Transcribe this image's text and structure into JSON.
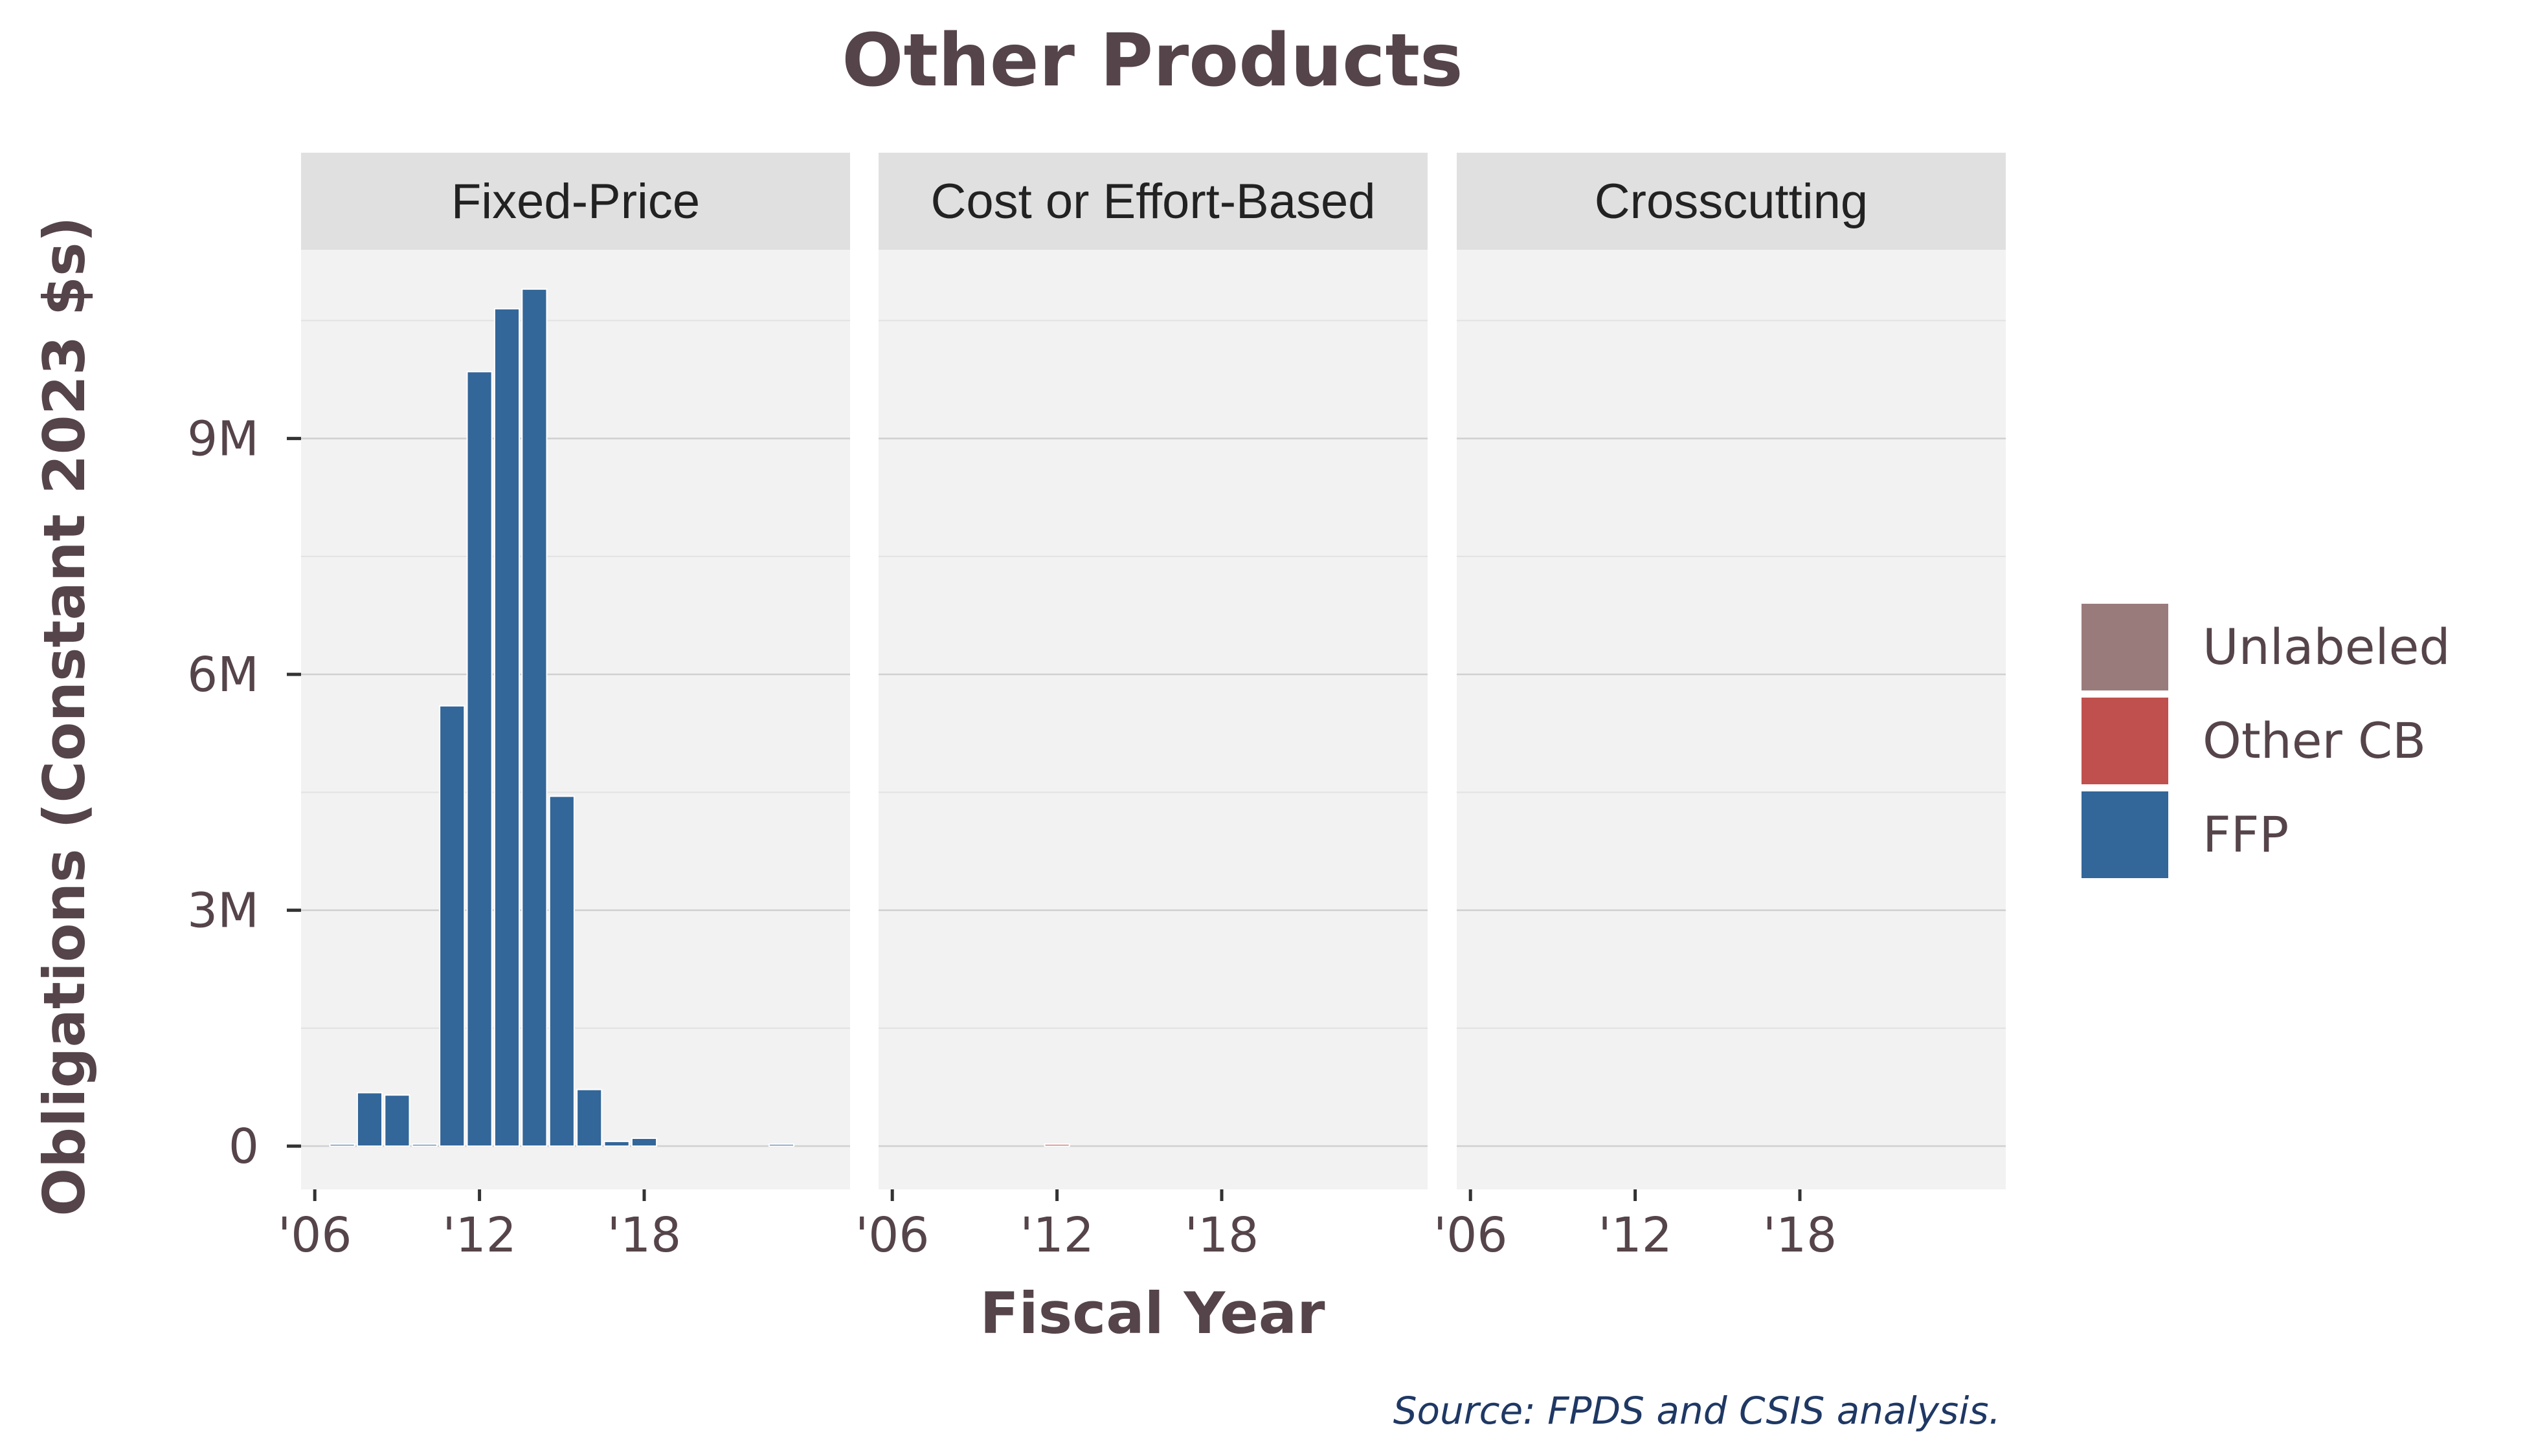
{
  "chart_data": {
    "type": "bar",
    "title": "Other Products",
    "xlabel": "Fiscal Year",
    "ylabel": "Obligations (Constant 2023 $s)",
    "caption": "Source: FPDS and CSIS analysis.",
    "x_ticks": [
      "'06",
      "'12",
      "'18"
    ],
    "y_ticks": [
      "0",
      "3M",
      "6M",
      "9M"
    ],
    "ylim": [
      -550000,
      11400000
    ],
    "xlim": [
      2005.5,
      2025.5
    ],
    "grid": true,
    "stacked": true,
    "legend_position": "right",
    "legend": [
      {
        "name": "Unlabeled",
        "color": "#9A7B7B"
      },
      {
        "name": "Other CB",
        "color": "#C0504D"
      },
      {
        "name": "FFP",
        "color": "#336699"
      }
    ],
    "panels": [
      {
        "label": "Fixed-Price",
        "series": [
          {
            "name": "FFP",
            "color": "#336699",
            "x": [
              2007,
              2008,
              2009,
              2010,
              2011,
              2012,
              2013,
              2014,
              2015,
              2016,
              2017,
              2018,
              2023
            ],
            "values": [
              20000,
              680000,
              650000,
              10000,
              5600000,
              9850000,
              10650000,
              10900000,
              4450000,
              720000,
              60000,
              100000,
              5000
            ]
          }
        ]
      },
      {
        "label": "Cost or Effort-Based",
        "series": [
          {
            "name": "Other CB",
            "color": "#C0504D",
            "x": [
              2012
            ],
            "values": [
              25000
            ]
          }
        ]
      },
      {
        "label": "Crosscutting",
        "series": []
      }
    ]
  }
}
